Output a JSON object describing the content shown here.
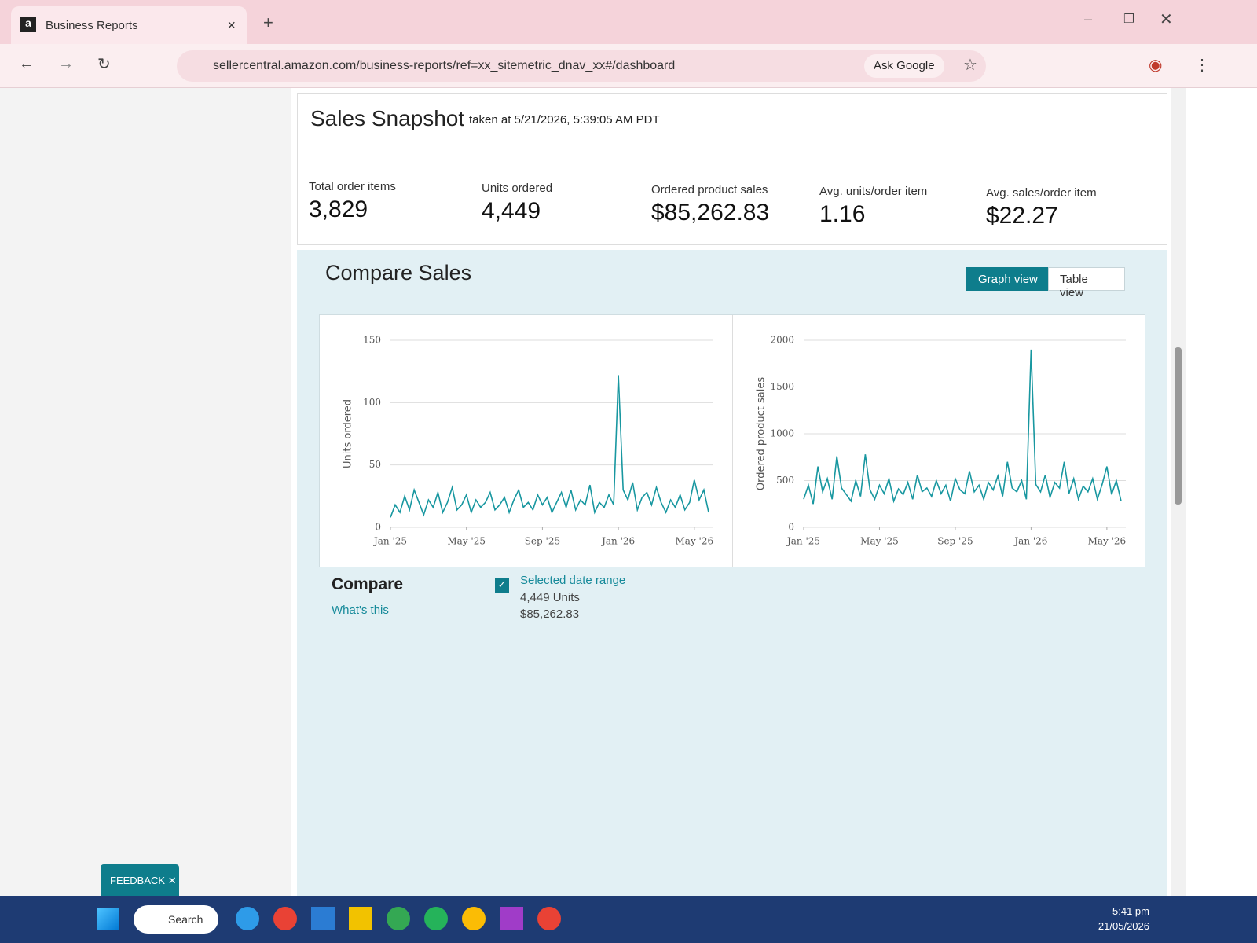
{
  "browser": {
    "tab_title": "Business Reports",
    "url": "sellercentral.amazon.com/business-reports/ref=xx_sitemetric_dnav_xx#/dashboard",
    "ask_google": "Ask Google"
  },
  "snapshot": {
    "title": "Sales Snapshot",
    "taken_at": "taken at 5/21/2026, 5:39:05 AM PDT",
    "metrics": [
      {
        "label": "Total order items",
        "value": "3,829"
      },
      {
        "label": "Units ordered",
        "value": "4,449"
      },
      {
        "label": "Ordered product sales",
        "value": "$85,262.83"
      },
      {
        "label": "Avg. units/order item",
        "value": "1.16"
      },
      {
        "label": "Avg. sales/order item",
        "value": "$22.27"
      }
    ]
  },
  "compare_sales": {
    "title": "Compare Sales",
    "graph_view": "Graph view",
    "table_view": "Table view"
  },
  "chart_data": [
    {
      "type": "line",
      "y_label": "Units ordered",
      "color": "#1897a0",
      "grid": true,
      "x": [
        0,
        0.25,
        0.5,
        0.75,
        1,
        1.25,
        1.5,
        1.75,
        2,
        2.25,
        2.5,
        2.75,
        3,
        3.25,
        3.5,
        3.75,
        4,
        4.25,
        4.5,
        4.75,
        5,
        5.25,
        5.5,
        5.75,
        6,
        6.25,
        6.5,
        6.75,
        7,
        7.25,
        7.5,
        7.75,
        8,
        8.25,
        8.5,
        8.75,
        9,
        9.25,
        9.5,
        9.75,
        10,
        10.25,
        10.5,
        10.75,
        11,
        11.25,
        11.5,
        11.75,
        12,
        12.25,
        12.5,
        12.75,
        13,
        13.25,
        13.5,
        13.75,
        14,
        14.25,
        14.5,
        14.75,
        15,
        15.25,
        15.5,
        15.75,
        16,
        16.25,
        16.5,
        16.75
      ],
      "values": [
        8,
        18,
        12,
        25,
        14,
        30,
        20,
        10,
        22,
        16,
        28,
        12,
        20,
        32,
        14,
        18,
        26,
        12,
        22,
        16,
        20,
        28,
        14,
        18,
        24,
        12,
        22,
        30,
        16,
        20,
        14,
        26,
        18,
        24,
        12,
        20,
        28,
        16,
        30,
        14,
        22,
        18,
        34,
        12,
        20,
        16,
        26,
        18,
        122,
        30,
        22,
        36,
        14,
        24,
        28,
        18,
        32,
        20,
        12,
        22,
        16,
        26,
        14,
        20,
        38,
        22,
        30,
        12
      ],
      "xlim": [
        0,
        17
      ],
      "xticks": [
        {
          "value": 0,
          "label": "Jan '25"
        },
        {
          "value": 4,
          "label": "May '25"
        },
        {
          "value": 8,
          "label": "Sep '25"
        },
        {
          "value": 12,
          "label": "Jan '26"
        },
        {
          "value": 16,
          "label": "May '26"
        }
      ],
      "ylim": [
        0,
        150
      ],
      "yticks": [
        0,
        50,
        100,
        150
      ]
    },
    {
      "type": "line",
      "y_label": "Ordered product sales",
      "color": "#1897a0",
      "grid": true,
      "x": [
        0,
        0.25,
        0.5,
        0.75,
        1,
        1.25,
        1.5,
        1.75,
        2,
        2.25,
        2.5,
        2.75,
        3,
        3.25,
        3.5,
        3.75,
        4,
        4.25,
        4.5,
        4.75,
        5,
        5.25,
        5.5,
        5.75,
        6,
        6.25,
        6.5,
        6.75,
        7,
        7.25,
        7.5,
        7.75,
        8,
        8.25,
        8.5,
        8.75,
        9,
        9.25,
        9.5,
        9.75,
        10,
        10.25,
        10.5,
        10.75,
        11,
        11.25,
        11.5,
        11.75,
        12,
        12.25,
        12.5,
        12.75,
        13,
        13.25,
        13.5,
        13.75,
        14,
        14.25,
        14.5,
        14.75,
        15,
        15.25,
        15.5,
        15.75,
        16,
        16.25,
        16.5,
        16.75
      ],
      "values": [
        300,
        450,
        250,
        650,
        380,
        520,
        300,
        760,
        420,
        350,
        280,
        500,
        330,
        780,
        400,
        300,
        450,
        360,
        520,
        280,
        410,
        350,
        480,
        300,
        560,
        380,
        420,
        330,
        500,
        360,
        450,
        280,
        520,
        400,
        360,
        600,
        380,
        450,
        300,
        480,
        400,
        550,
        330,
        700,
        420,
        380,
        500,
        300,
        1900,
        460,
        380,
        560,
        320,
        480,
        420,
        700,
        360,
        520,
        300,
        440,
        380,
        520,
        300,
        460,
        650,
        350,
        500,
        280
      ],
      "xlim": [
        0,
        17
      ],
      "xticks": [
        {
          "value": 0,
          "label": "Jan '25"
        },
        {
          "value": 4,
          "label": "May '25"
        },
        {
          "value": 8,
          "label": "Sep '25"
        },
        {
          "value": 12,
          "label": "Jan '26"
        },
        {
          "value": 16,
          "label": "May '26"
        }
      ],
      "ylim": [
        0,
        2000
      ],
      "yticks": [
        0,
        500,
        1000,
        1500,
        2000
      ]
    }
  ],
  "compare": {
    "title": "Compare",
    "whats_this": "What's this",
    "range_label": "Selected date range",
    "units": "4,449 Units",
    "sales": "$85,262.83"
  },
  "feedback": "FEEDBACK",
  "taskbar": {
    "search": "Search",
    "time": "5:41 pm",
    "date": "21/05/2026"
  }
}
